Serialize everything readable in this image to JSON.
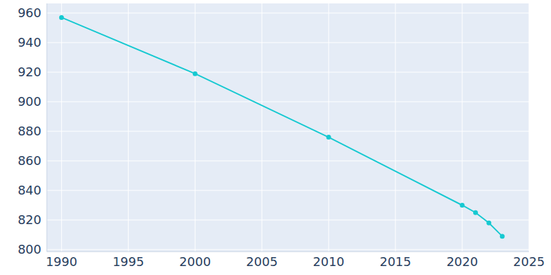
{
  "chart_data": {
    "type": "line",
    "x": [
      1990,
      2000,
      2010,
      2020,
      2021,
      2022,
      2023
    ],
    "values": [
      957,
      919,
      876,
      830,
      825,
      818,
      809
    ],
    "color": "#17c9d1",
    "xlim": [
      1988.9,
      2025
    ],
    "xticks": [
      1990,
      1995,
      2000,
      2005,
      2010,
      2015,
      2020,
      2025
    ],
    "ylim": [
      798.6,
      966.5
    ],
    "yticks": [
      800,
      820,
      840,
      860,
      880,
      900,
      920,
      940,
      960
    ],
    "grid": true,
    "marker": "circle"
  }
}
